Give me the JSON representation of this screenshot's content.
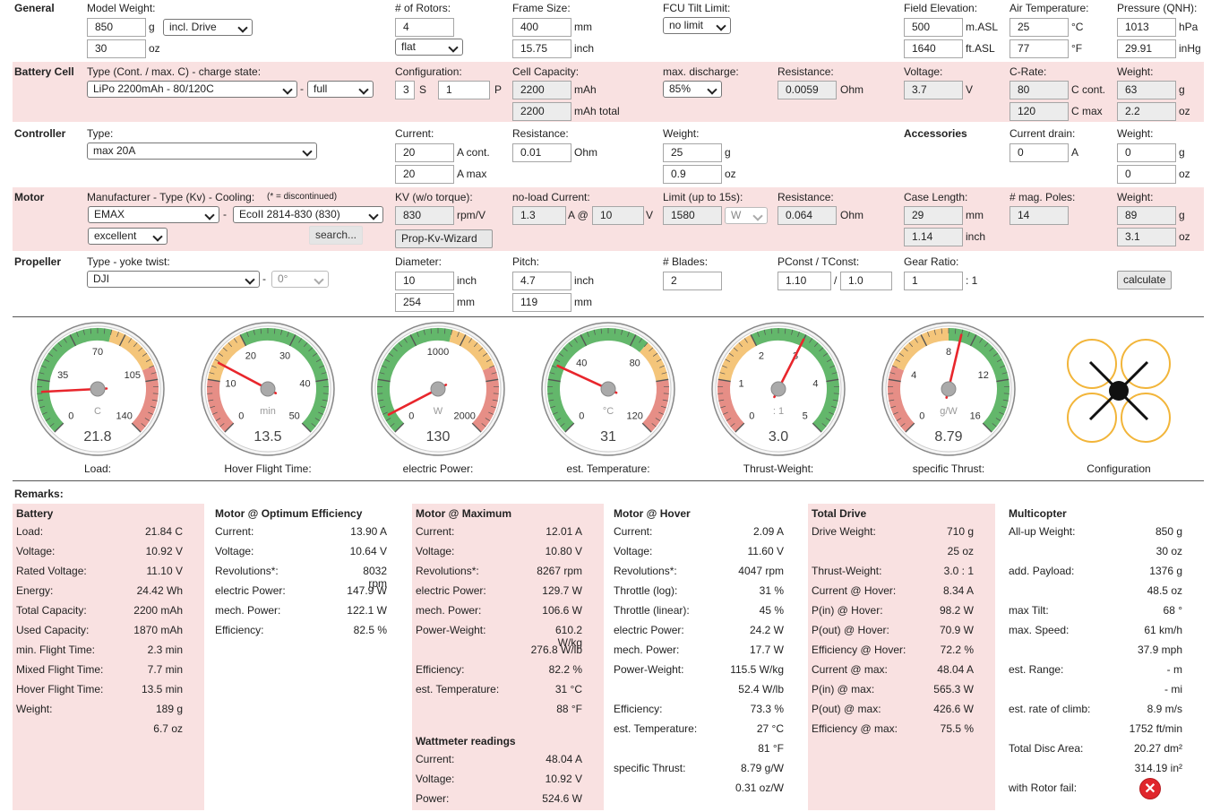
{
  "general": {
    "label": "General",
    "model_weight_label": "Model Weight:",
    "mw_g": "850",
    "u_g": "g",
    "drive_opt": "incl. Drive",
    "mw_oz": "30",
    "u_oz": "oz",
    "rotors_label": "# of Rotors:",
    "rotors": "4",
    "frame_type": "flat",
    "frame_label": "Frame Size:",
    "frame_mm": "400",
    "u_mm": "mm",
    "frame_inch": "15.75",
    "u_inch": "inch",
    "fcu_label": "FCU Tilt Limit:",
    "fcu": "no limit",
    "elev_label": "Field Elevation:",
    "elev_m": "500",
    "u_masl": "m.ASL",
    "elev_ft": "1640",
    "u_ftasl": "ft.ASL",
    "air_label": "Air Temperature:",
    "air_c": "25",
    "u_c": "°C",
    "air_f": "77",
    "u_f": "°F",
    "press_label": "Pressure (QNH):",
    "press_hpa": "1013",
    "u_hpa": "hPa",
    "press_inhg": "29.91",
    "u_inhg": "inHg"
  },
  "battery": {
    "label": "Battery Cell",
    "type_label": "Type (Cont. / max. C) - charge state:",
    "type": "LiPo 2200mAh - 80/120C",
    "dash": "-",
    "charge": "full",
    "config_label": "Configuration:",
    "s": "3",
    "u_s": "S",
    "p": "1",
    "u_p": "P",
    "cap_label": "Cell Capacity:",
    "cap": "2200",
    "u_mah": "mAh",
    "cap_total": "2200",
    "u_mahtotal": "mAh total",
    "disch_label": "max. discharge:",
    "disch": "85%",
    "res_label": "Resistance:",
    "res": "0.0059",
    "u_ohm": "Ohm",
    "volt_label": "Voltage:",
    "volt": "3.7",
    "u_v": "V",
    "crate_label": "C-Rate:",
    "c_cont": "80",
    "u_ccont": "C cont.",
    "c_max": "120",
    "u_cmax": "C max",
    "w_label": "Weight:",
    "w_g": "63",
    "u_g": "g",
    "w_oz": "2.2",
    "u_oz": "oz"
  },
  "controller": {
    "label": "Controller",
    "type_label": "Type:",
    "type": "max 20A",
    "cur_label": "Current:",
    "cur": "20",
    "u_acont": "A cont.",
    "max": "20",
    "u_amax": "A max",
    "res_label": "Resistance:",
    "res": "0.01",
    "u_ohm": "Ohm",
    "w_label": "Weight:",
    "w_g": "25",
    "u_g": "g",
    "w_oz": "0.9",
    "u_oz": "oz",
    "acc_label": "Accessories",
    "drain_label": "Current drain:",
    "drain": "0",
    "u_a": "A",
    "aw_label": "Weight:",
    "aw_g": "0",
    "aw_u_g": "g",
    "aw_oz": "0",
    "aw_u_oz": "oz"
  },
  "motor": {
    "label": "Motor",
    "mfr_label": "Manufacturer - Type (Kv) - Cooling:",
    "disc_note": "(* = discontinued)",
    "mfr": "EMAX",
    "dash": "-",
    "type": "EcoII 2814-830 (830)",
    "cooling": "excellent",
    "search": "search...",
    "kv_label": "KV (w/o torque):",
    "kv": "830",
    "u_kv": "rpm/V",
    "wizard": "Prop-Kv-Wizard",
    "noload_label": "no-load Current:",
    "noload_a": "1.3",
    "u_a_at": "A @",
    "noload_v": "10",
    "u_v": "V",
    "limit_label": "Limit (up to 15s):",
    "limit": "1580",
    "limit_unit": "W",
    "res_label": "Resistance:",
    "res": "0.064",
    "u_ohm": "Ohm",
    "case_label": "Case Length:",
    "case_mm": "29",
    "u_mm": "mm",
    "case_inch": "1.14",
    "u_inch": "inch",
    "poles_label": "# mag. Poles:",
    "poles": "14",
    "w_label": "Weight:",
    "w_g": "89",
    "u_g": "g",
    "w_oz": "3.1",
    "u_oz": "oz"
  },
  "propeller": {
    "label": "Propeller",
    "type_label": "Type - yoke twist:",
    "type": "DJI",
    "dash": "-",
    "twist": "0°",
    "dia_label": "Diameter:",
    "dia_in": "10",
    "u_inch": "inch",
    "dia_mm": "254",
    "u_mm": "mm",
    "pitch_label": "Pitch:",
    "pitch_in": "4.7",
    "pitch_mm": "119",
    "blades_label": "# Blades:",
    "blades": "2",
    "pconst_label": "PConst / TConst:",
    "pconst": "1.10",
    "slash": "/",
    "tconst": "1.0",
    "gear_label": "Gear Ratio:",
    "gear": "1",
    "gear_suffix": ": 1",
    "calc": "calculate"
  },
  "gauges": [
    {
      "label": "Load:",
      "unit": "C",
      "value": "21.8",
      "ticks": [
        "0",
        "35",
        "70",
        "105",
        "140"
      ],
      "level": 0.156
    },
    {
      "label": "Hover Flight Time:",
      "unit": "min",
      "value": "13.5",
      "ticks": [
        "0",
        "10",
        "20",
        "30",
        "40",
        "50"
      ],
      "level": 0.27
    },
    {
      "label": "electric Power:",
      "unit": "W",
      "value": "130",
      "ticks": [
        "0",
        "1000",
        "2000"
      ],
      "level": 0.065
    },
    {
      "label": "est. Temperature:",
      "unit": "°C",
      "value": "31",
      "ticks": [
        "0",
        "40",
        "80",
        "120"
      ],
      "level": 0.258
    },
    {
      "label": "Thrust-Weight:",
      "unit": ": 1",
      "value": "3.0",
      "ticks": [
        "0",
        "1",
        "2",
        "3",
        "4",
        "5"
      ],
      "level": 0.6
    },
    {
      "label": "specific Thrust:",
      "unit": "g/W",
      "value": "8.79",
      "ticks": [
        "0",
        "4",
        "8",
        "12",
        "16"
      ],
      "level": 0.549
    }
  ],
  "config_label": "Configuration",
  "remarks_label": "Remarks:",
  "remarks": [
    {
      "title": "Battery",
      "rows": [
        [
          "Load:",
          "21.84 C"
        ],
        [
          "Voltage:",
          "10.92 V"
        ],
        [
          "Rated Voltage:",
          "11.10 V"
        ],
        [
          "Energy:",
          "24.42 Wh"
        ],
        [
          "Total Capacity:",
          "2200 mAh"
        ],
        [
          "Used Capacity:",
          "1870 mAh"
        ],
        [
          "min. Flight Time:",
          "2.3 min"
        ],
        [
          "Mixed Flight Time:",
          "7.7 min"
        ],
        [
          "Hover Flight Time:",
          "13.5 min"
        ],
        [
          "Weight:",
          "189 g"
        ],
        [
          "",
          "6.7 oz"
        ]
      ]
    },
    {
      "title": "Motor @ Optimum Efficiency",
      "rows": [
        [
          "Current:",
          "13.90 A"
        ],
        [
          "Voltage:",
          "10.64 V"
        ],
        [
          "Revolutions*:",
          "8032 rpm"
        ],
        [
          "electric Power:",
          "147.9 W"
        ],
        [
          "mech. Power:",
          "122.1 W"
        ],
        [
          "Efficiency:",
          "82.5 %"
        ]
      ]
    },
    {
      "title": "Motor @ Maximum",
      "rows": [
        [
          "Current:",
          "12.01 A"
        ],
        [
          "Voltage:",
          "10.80 V"
        ],
        [
          "Revolutions*:",
          "8267 rpm"
        ],
        [
          "electric Power:",
          "129.7 W"
        ],
        [
          "mech. Power:",
          "106.6 W"
        ],
        [
          "Power-Weight:",
          "610.2 W/kg"
        ],
        [
          "",
          "276.8 W/lb"
        ],
        [
          "Efficiency:",
          "82.2 %"
        ],
        [
          "est. Temperature:",
          "31 °C"
        ],
        [
          "",
          "88 °F"
        ]
      ],
      "sub_title": "Wattmeter readings",
      "sub_rows": [
        [
          "Current:",
          "48.04 A"
        ],
        [
          "Voltage:",
          "10.92 V"
        ],
        [
          "Power:",
          "524.6 W"
        ]
      ]
    },
    {
      "title": "Motor @ Hover",
      "rows": [
        [
          "Current:",
          "2.09 A"
        ],
        [
          "Voltage:",
          "11.60 V"
        ],
        [
          "Revolutions*:",
          "4047 rpm"
        ],
        [
          "Throttle (log):",
          "31 %"
        ],
        [
          "Throttle (linear):",
          "45 %"
        ],
        [
          "electric Power:",
          "24.2 W"
        ],
        [
          "mech. Power:",
          "17.7 W"
        ],
        [
          "Power-Weight:",
          "115.5 W/kg"
        ],
        [
          "",
          "52.4 W/lb"
        ],
        [
          "Efficiency:",
          "73.3 %"
        ],
        [
          "est. Temperature:",
          "27 °C"
        ],
        [
          "",
          "81 °F"
        ],
        [
          "specific Thrust:",
          "8.79 g/W"
        ],
        [
          "",
          "0.31 oz/W"
        ]
      ]
    },
    {
      "title": "Total Drive",
      "rows": [
        [
          "Drive Weight:",
          "710 g"
        ],
        [
          "",
          "25 oz"
        ],
        [
          "Thrust-Weight:",
          "3.0 : 1"
        ],
        [
          "Current @ Hover:",
          "8.34 A"
        ],
        [
          "P(in) @ Hover:",
          "98.2 W"
        ],
        [
          "P(out) @ Hover:",
          "70.9 W"
        ],
        [
          "Efficiency @ Hover:",
          "72.2 %"
        ],
        [
          "Current @ max:",
          "48.04 A"
        ],
        [
          "P(in) @ max:",
          "565.3 W"
        ],
        [
          "P(out) @ max:",
          "426.6 W"
        ],
        [
          "Efficiency @ max:",
          "75.5 %"
        ]
      ]
    },
    {
      "title": "Multicopter",
      "rows": [
        [
          "All-up Weight:",
          "850 g"
        ],
        [
          "",
          "30 oz"
        ],
        [
          "add. Payload:",
          "1376 g"
        ],
        [
          "",
          "48.5 oz"
        ],
        [
          "max Tilt:",
          "68 °"
        ],
        [
          "max. Speed:",
          "61 km/h"
        ],
        [
          "",
          "37.9 mph"
        ],
        [
          "est. Range:",
          "- m"
        ],
        [
          "",
          "- mi"
        ],
        [
          "est. rate of climb:",
          "8.9 m/s"
        ],
        [
          "",
          "1752 ft/min"
        ],
        [
          "Total Disc Area:",
          "20.27 dm²"
        ],
        [
          "",
          "314.19 in²"
        ],
        [
          "with Rotor fail:",
          ""
        ]
      ]
    }
  ]
}
